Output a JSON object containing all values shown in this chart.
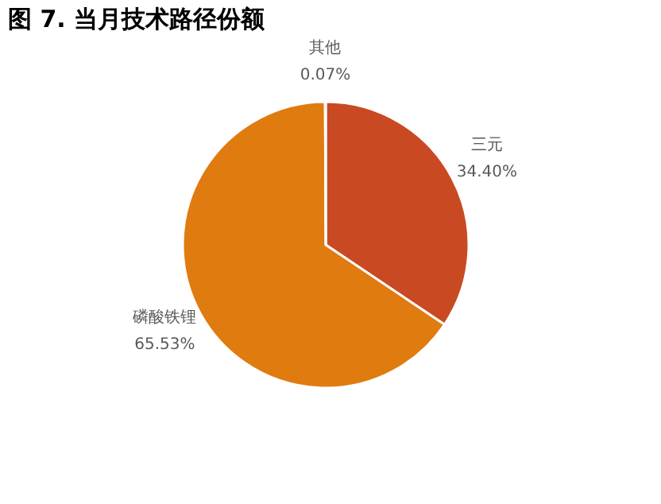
{
  "chart_data": {
    "type": "pie",
    "title": "图 7. 当月技术路径份额",
    "categories": [
      "三元",
      "磷酸铁锂",
      "其他"
    ],
    "values": [
      34.4,
      65.53,
      0.07
    ],
    "colors": [
      "#c94a22",
      "#e07b10",
      "#bfbfbf"
    ],
    "value_labels": [
      "34.40%",
      "65.53%",
      "0.07%"
    ],
    "legend": false
  }
}
